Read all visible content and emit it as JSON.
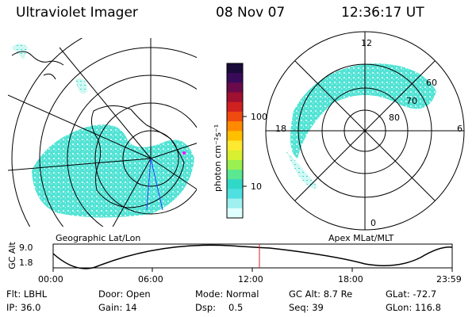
{
  "header": {
    "instrument": "Ultraviolet Imager",
    "date": "08 Nov 07",
    "time": "12:36:17 UT"
  },
  "colorbar": {
    "label": "photon cm⁻²s⁻¹",
    "ticks": [
      "100",
      "10"
    ],
    "colors": [
      "#1a0a3a",
      "#3a0a5a",
      "#6a0a4a",
      "#a01030",
      "#d02020",
      "#f04a10",
      "#ff8a00",
      "#ffc000",
      "#ffe830",
      "#d8f030",
      "#9af050",
      "#5ae890",
      "#30d8c8",
      "#50e0e0",
      "#a0f0f0",
      "#e0ffff"
    ]
  },
  "left_panel": {
    "label": "Geographic Lat/Lon"
  },
  "right_panel": {
    "label": "Apex MLat/MLT",
    "mlt_labels": {
      "top": "12",
      "left": "18",
      "right": "6",
      "bottom": "0"
    },
    "lat_labels": [
      "60",
      "70",
      "80"
    ]
  },
  "timeline": {
    "ylabel": "GC Alt",
    "y_ticks": [
      "9.0",
      "1.8"
    ],
    "x_ticks": [
      "00:00",
      "06:00",
      "12:00",
      "18:00",
      "23:59"
    ],
    "marker_time": "12:36"
  },
  "status": {
    "flt": "Flt: LBHL",
    "ip": "IP: 36.0",
    "door": "Door: Open",
    "gain": "Gain: 14",
    "mode": "Mode: Normal",
    "dsp_label": "Dsp:",
    "dsp_value": "0.5",
    "gc_alt": "GC Alt: 8.7 Re",
    "seq": "Seq: 39",
    "glat": "GLat: -72.7",
    "glon": "GLon: 116.8"
  }
}
